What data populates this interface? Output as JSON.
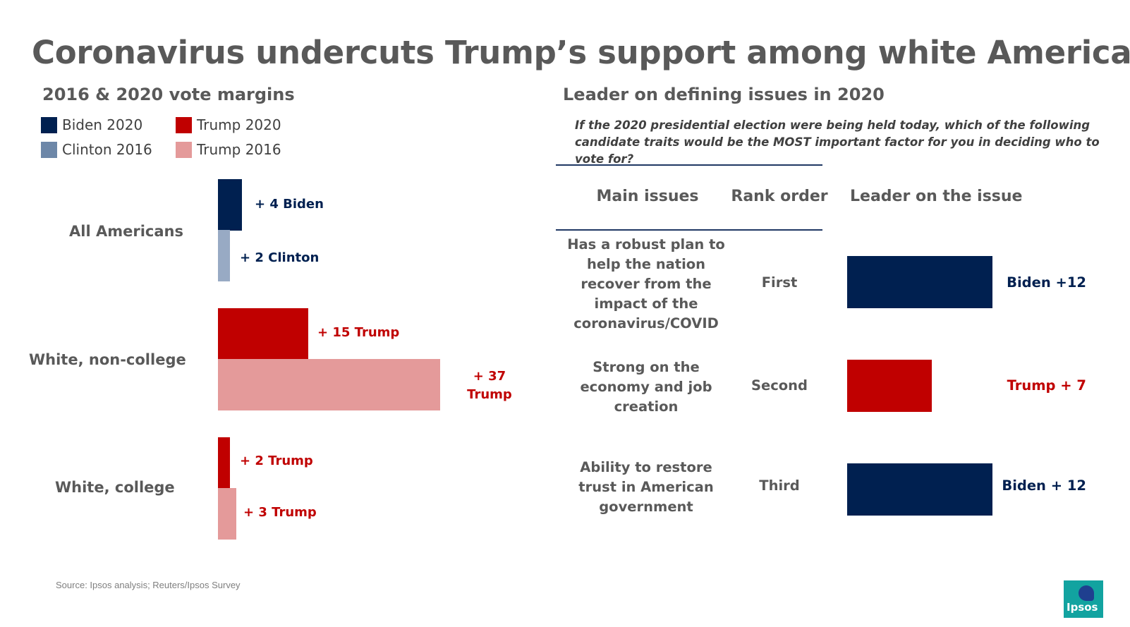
{
  "title": "Coronavirus undercuts Trump’s support among white Americans",
  "left_subtitle": "2016 & 2020 vote margins",
  "right_subtitle": "Leader on defining issues in 2020",
  "colors": {
    "biden_2020": "#002050",
    "clinton_2016": "#98aac4",
    "clinton_2016_legend": "#6d87a8",
    "trump_2020": "#c00000",
    "trump_2016": "#e49a9a",
    "biden_text": "#002050",
    "trump_text": "#c00000"
  },
  "legend": [
    {
      "label": "Biden 2020",
      "color": "#002050"
    },
    {
      "label": "Trump 2020",
      "color": "#c00000"
    },
    {
      "label": "Clinton 2016",
      "color": "#6d87a8"
    },
    {
      "label": "Trump 2016",
      "color": "#e49a9a"
    }
  ],
  "chart_data": [
    {
      "type": "bar",
      "title": "2016 & 2020 vote margins",
      "orientation": "horizontal",
      "categories": [
        "All Americans",
        "White, non-college",
        "White, college"
      ],
      "series": [
        {
          "name": "2020",
          "values": [
            {
              "party": "Biden",
              "margin": 4,
              "label": "+ 4 Biden"
            },
            {
              "party": "Trump",
              "margin": 15,
              "label": "+ 15 Trump"
            },
            {
              "party": "Trump",
              "margin": 2,
              "label": "+ 2 Trump"
            }
          ]
        },
        {
          "name": "2016",
          "values": [
            {
              "party": "Clinton",
              "margin": 2,
              "label": "+ 2 Clinton"
            },
            {
              "party": "Trump",
              "margin": 37,
              "label": "+ 37 Trump"
            },
            {
              "party": "Trump",
              "margin": 3,
              "label": "+ 3 Trump"
            }
          ]
        }
      ]
    },
    {
      "type": "bar",
      "title": "Leader on defining issues in 2020",
      "question": "If the 2020 presidential election were being held today, which of the following candidate traits would be the MOST important factor for you in deciding who to vote for?",
      "columns": [
        "Main issues",
        "Rank order",
        "Leader on the issue"
      ],
      "rows": [
        {
          "issue": "Has a robust plan to help the nation recover from the impact of the coronavirus/COVID",
          "rank": "First",
          "leader": "Biden",
          "margin": 12,
          "label": "Biden +12"
        },
        {
          "issue": "Strong on the economy and job creation",
          "rank": "Second",
          "leader": "Trump",
          "margin": 7,
          "label": "Trump + 7"
        },
        {
          "issue": "Ability to restore trust in American government",
          "rank": "Third",
          "leader": "Biden",
          "margin": 12,
          "label": "Biden + 12"
        }
      ]
    }
  ],
  "source": "Source: Ipsos analysis; Reuters/Ipsos Survey",
  "logo_text": "Ipsos"
}
